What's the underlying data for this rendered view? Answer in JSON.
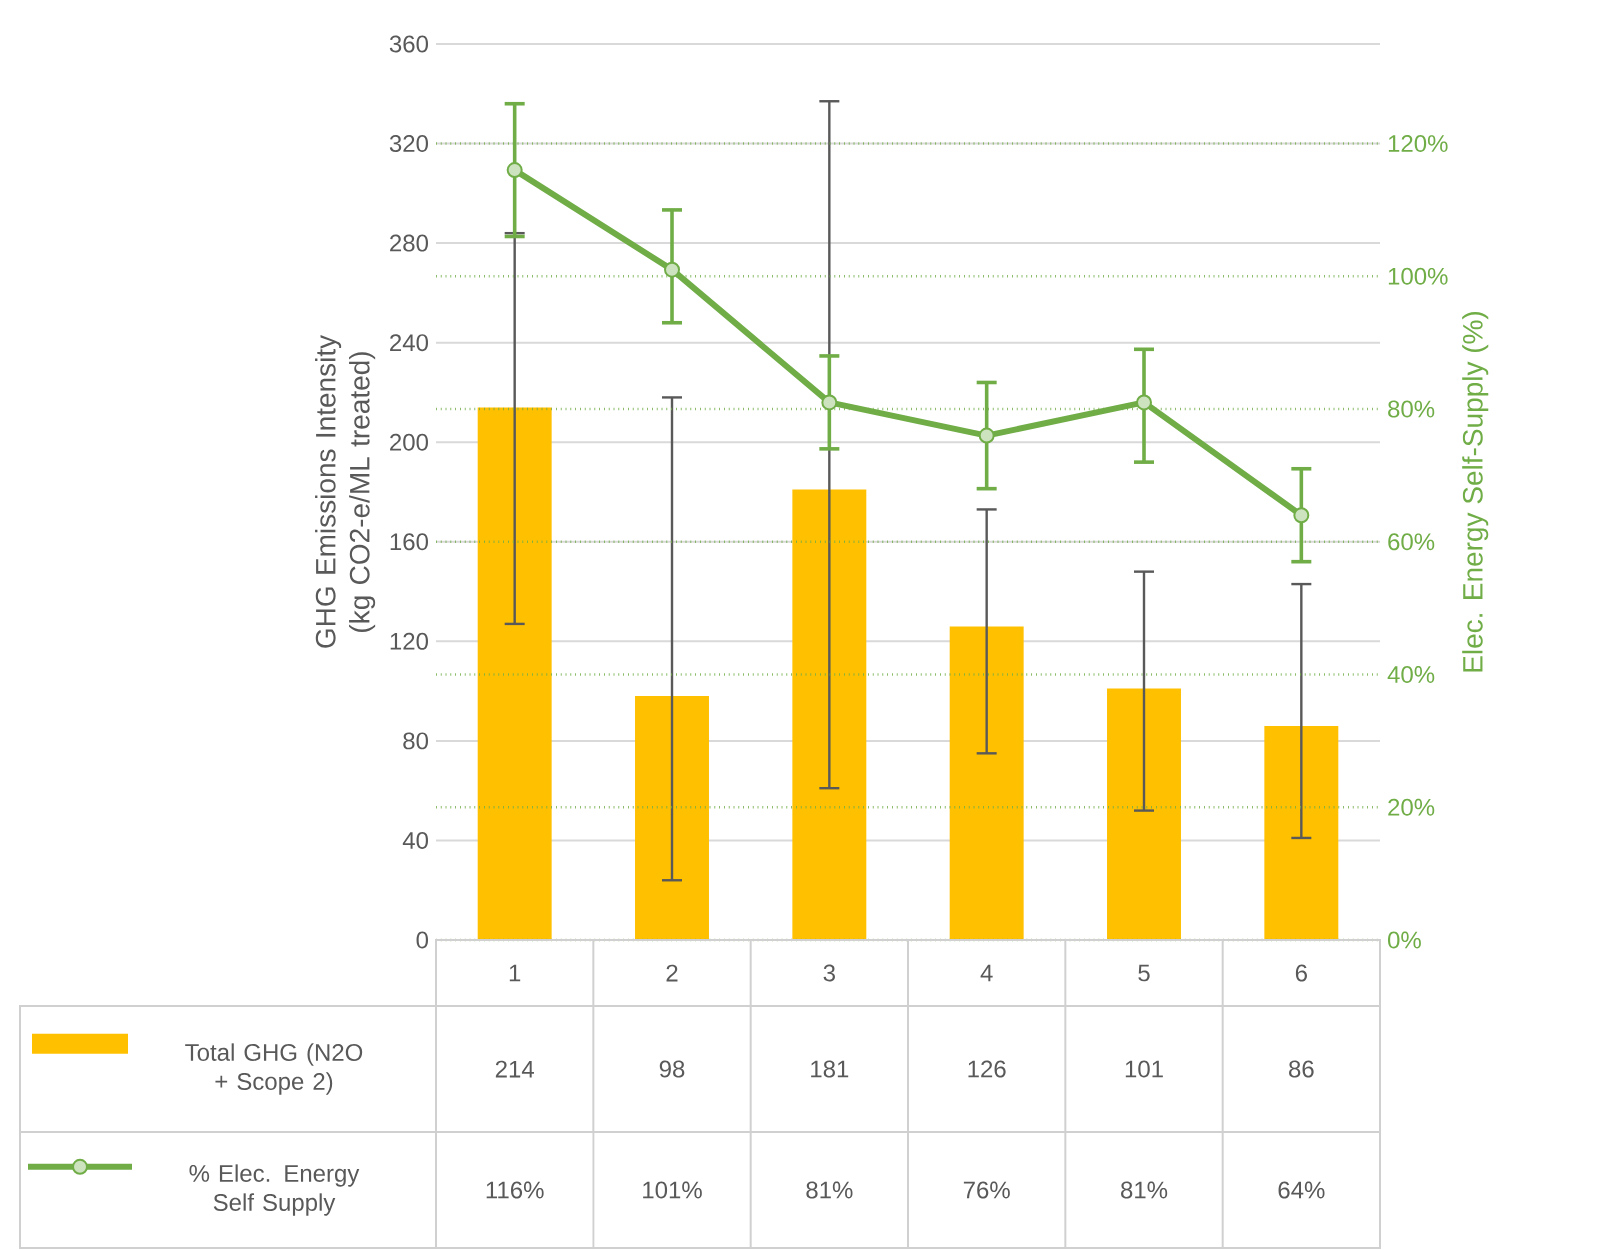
{
  "chart_data": {
    "type": "bar",
    "categories": [
      "1",
      "2",
      "3",
      "4",
      "5",
      "6"
    ],
    "ylabel": "GHG Emissions Intensity (kg CO2-e/ML treated)",
    "y2label": "Elec. Energy Self-Supply (%)",
    "ylim": [
      0,
      360
    ],
    "yticks": [
      0,
      40,
      80,
      120,
      160,
      200,
      240,
      280,
      320,
      360
    ],
    "y2lim": [
      0,
      135
    ],
    "y2ticks": [
      {
        "value": 0,
        "label": "0%"
      },
      {
        "value": 20,
        "label": "20%"
      },
      {
        "value": 40,
        "label": "40%"
      },
      {
        "value": 60,
        "label": "60%"
      },
      {
        "value": 80,
        "label": "80%"
      },
      {
        "value": 100,
        "label": "100%"
      },
      {
        "value": 120,
        "label": "120%"
      }
    ],
    "grid": true,
    "legend": "bottom",
    "marker": "circle",
    "series": [
      {
        "name": "Total GHG (N2O + Scope 2)",
        "color": "#ffc000",
        "values": [
          214,
          98,
          181,
          126,
          101,
          86
        ],
        "value_labels": [
          "214",
          "98",
          "181",
          "126",
          "101",
          "86"
        ],
        "errors": [
          [
            127,
            284
          ],
          [
            24,
            218
          ],
          [
            61,
            337
          ],
          [
            75,
            173
          ],
          [
            52,
            148
          ],
          [
            41,
            143
          ]
        ]
      },
      {
        "name": "% Elec. Energy Self Supply",
        "type": "line",
        "axis": "y2",
        "color": "#70ad47",
        "values": [
          116,
          101,
          81,
          76,
          81,
          64
        ],
        "value_labels": [
          "116%",
          "101%",
          "81%",
          "76%",
          "81%",
          "64%"
        ],
        "errors": [
          [
            106,
            126
          ],
          [
            93,
            110
          ],
          [
            74,
            88
          ],
          [
            68,
            84
          ],
          [
            72,
            89
          ],
          [
            57,
            71
          ]
        ]
      }
    ]
  }
}
